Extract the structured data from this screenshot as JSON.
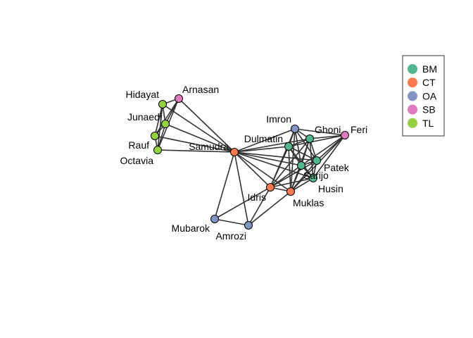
{
  "groups": [
    {
      "code": "BM",
      "color": "#52b78f"
    },
    {
      "code": "CT",
      "color": "#fb7a4e"
    },
    {
      "code": "OA",
      "color": "#8293c4"
    },
    {
      "code": "SB",
      "color": "#e07ac0"
    },
    {
      "code": "TL",
      "color": "#95cf42"
    }
  ],
  "nodes": [
    {
      "id": "Arnasan",
      "label": "Arnasan",
      "group": "SB"
    },
    {
      "id": "Hidayat",
      "label": "Hidayat",
      "group": "TL"
    },
    {
      "id": "Junaedi",
      "label": "Junaedi",
      "group": "TL"
    },
    {
      "id": "Rauf",
      "label": "Rauf",
      "group": "TL"
    },
    {
      "id": "Octavia",
      "label": "Octavia",
      "group": "TL"
    },
    {
      "id": "Samudra",
      "label": "Samudra",
      "group": "CT"
    },
    {
      "id": "Imron",
      "label": "Imron",
      "group": "OA"
    },
    {
      "id": "Dulmatin",
      "label": "Dulmatin",
      "group": "BM"
    },
    {
      "id": "Ghoni",
      "label": "Ghoni",
      "group": "BM"
    },
    {
      "id": "Feri",
      "label": "Feri",
      "group": "SB"
    },
    {
      "id": "Patek",
      "label": "Patek",
      "group": "BM"
    },
    {
      "id": "Sarijo",
      "label": "Sarijo",
      "group": "BM"
    },
    {
      "id": "Husin",
      "label": "Husin",
      "group": "BM"
    },
    {
      "id": "Idris",
      "label": "Idris",
      "group": "CT"
    },
    {
      "id": "Muklas",
      "label": "Muklas",
      "group": "CT"
    },
    {
      "id": "Mubarok",
      "label": "Mubarok",
      "group": "OA"
    },
    {
      "id": "Amrozi",
      "label": "Amrozi",
      "group": "OA"
    }
  ],
  "edges": [
    [
      "Hidayat",
      "Arnasan"
    ],
    [
      "Hidayat",
      "Junaedi"
    ],
    [
      "Hidayat",
      "Rauf"
    ],
    [
      "Hidayat",
      "Octavia"
    ],
    [
      "Hidayat",
      "Samudra"
    ],
    [
      "Junaedi",
      "Arnasan"
    ],
    [
      "Junaedi",
      "Rauf"
    ],
    [
      "Junaedi",
      "Octavia"
    ],
    [
      "Junaedi",
      "Samudra"
    ],
    [
      "Rauf",
      "Arnasan"
    ],
    [
      "Rauf",
      "Octavia"
    ],
    [
      "Rauf",
      "Samudra"
    ],
    [
      "Octavia",
      "Arnasan"
    ],
    [
      "Octavia",
      "Samudra"
    ],
    [
      "Arnasan",
      "Samudra"
    ],
    [
      "Samudra",
      "Imron"
    ],
    [
      "Samudra",
      "Dulmatin"
    ],
    [
      "Samudra",
      "Ghoni"
    ],
    [
      "Samudra",
      "Patek"
    ],
    [
      "Samudra",
      "Sarijo"
    ],
    [
      "Samudra",
      "Husin"
    ],
    [
      "Samudra",
      "Idris"
    ],
    [
      "Samudra",
      "Muklas"
    ],
    [
      "Samudra",
      "Mubarok"
    ],
    [
      "Samudra",
      "Amrozi"
    ],
    [
      "Mubarok",
      "Idris"
    ],
    [
      "Mubarok",
      "Amrozi"
    ],
    [
      "Amrozi",
      "Idris"
    ],
    [
      "Amrozi",
      "Muklas"
    ],
    [
      "Idris",
      "Muklas"
    ],
    [
      "Idris",
      "Dulmatin"
    ],
    [
      "Idris",
      "Imron"
    ],
    [
      "Idris",
      "Ghoni"
    ],
    [
      "Idris",
      "Sarijo"
    ],
    [
      "Idris",
      "Patek"
    ],
    [
      "Idris",
      "Husin"
    ],
    [
      "Muklas",
      "Dulmatin"
    ],
    [
      "Muklas",
      "Imron"
    ],
    [
      "Muklas",
      "Ghoni"
    ],
    [
      "Muklas",
      "Sarijo"
    ],
    [
      "Muklas",
      "Patek"
    ],
    [
      "Muklas",
      "Husin"
    ],
    [
      "Muklas",
      "Feri"
    ],
    [
      "Imron",
      "Dulmatin"
    ],
    [
      "Imron",
      "Ghoni"
    ],
    [
      "Imron",
      "Feri"
    ],
    [
      "Imron",
      "Patek"
    ],
    [
      "Imron",
      "Sarijo"
    ],
    [
      "Dulmatin",
      "Ghoni"
    ],
    [
      "Dulmatin",
      "Sarijo"
    ],
    [
      "Dulmatin",
      "Patek"
    ],
    [
      "Dulmatin",
      "Husin"
    ],
    [
      "Dulmatin",
      "Feri"
    ],
    [
      "Ghoni",
      "Feri"
    ],
    [
      "Ghoni",
      "Sarijo"
    ],
    [
      "Ghoni",
      "Patek"
    ],
    [
      "Ghoni",
      "Husin"
    ],
    [
      "Feri",
      "Sarijo"
    ],
    [
      "Feri",
      "Patek"
    ],
    [
      "Feri",
      "Husin"
    ],
    [
      "Sarijo",
      "Patek"
    ],
    [
      "Sarijo",
      "Husin"
    ],
    [
      "Patek",
      "Husin"
    ]
  ]
}
